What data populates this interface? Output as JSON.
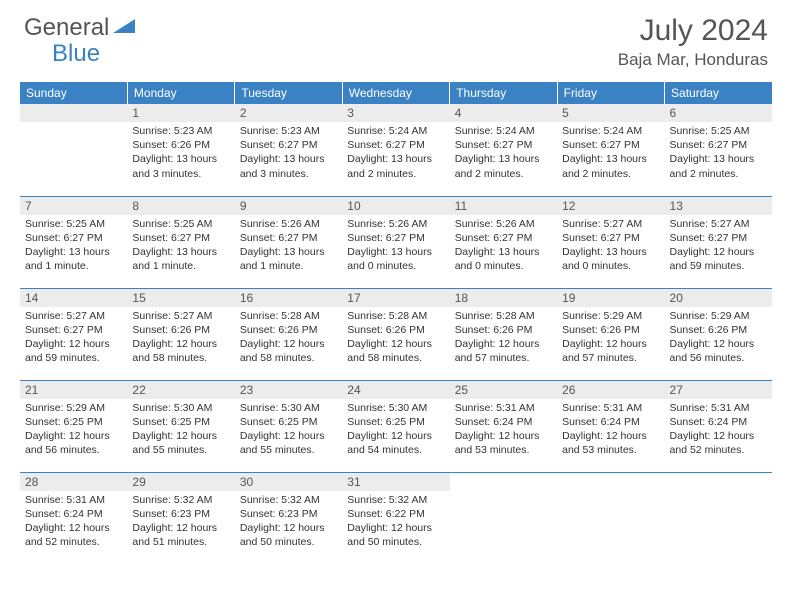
{
  "brand": {
    "part1": "General",
    "part2": "Blue",
    "accent": "#3b82c4",
    "text_color": "#555"
  },
  "title": "July 2024",
  "location": "Baja Mar, Honduras",
  "header_bg": "#3b82c4",
  "header_fg": "#ffffff",
  "daynum_bg": "#ececec",
  "border_color": "#3b82c4",
  "weekdays": [
    "Sunday",
    "Monday",
    "Tuesday",
    "Wednesday",
    "Thursday",
    "Friday",
    "Saturday"
  ],
  "weeks": [
    [
      null,
      {
        "n": "1",
        "sunrise": "5:23 AM",
        "sunset": "6:26 PM",
        "daylight": "13 hours and 3 minutes."
      },
      {
        "n": "2",
        "sunrise": "5:23 AM",
        "sunset": "6:27 PM",
        "daylight": "13 hours and 3 minutes."
      },
      {
        "n": "3",
        "sunrise": "5:24 AM",
        "sunset": "6:27 PM",
        "daylight": "13 hours and 2 minutes."
      },
      {
        "n": "4",
        "sunrise": "5:24 AM",
        "sunset": "6:27 PM",
        "daylight": "13 hours and 2 minutes."
      },
      {
        "n": "5",
        "sunrise": "5:24 AM",
        "sunset": "6:27 PM",
        "daylight": "13 hours and 2 minutes."
      },
      {
        "n": "6",
        "sunrise": "5:25 AM",
        "sunset": "6:27 PM",
        "daylight": "13 hours and 2 minutes."
      }
    ],
    [
      {
        "n": "7",
        "sunrise": "5:25 AM",
        "sunset": "6:27 PM",
        "daylight": "13 hours and 1 minute."
      },
      {
        "n": "8",
        "sunrise": "5:25 AM",
        "sunset": "6:27 PM",
        "daylight": "13 hours and 1 minute."
      },
      {
        "n": "9",
        "sunrise": "5:26 AM",
        "sunset": "6:27 PM",
        "daylight": "13 hours and 1 minute."
      },
      {
        "n": "10",
        "sunrise": "5:26 AM",
        "sunset": "6:27 PM",
        "daylight": "13 hours and 0 minutes."
      },
      {
        "n": "11",
        "sunrise": "5:26 AM",
        "sunset": "6:27 PM",
        "daylight": "13 hours and 0 minutes."
      },
      {
        "n": "12",
        "sunrise": "5:27 AM",
        "sunset": "6:27 PM",
        "daylight": "13 hours and 0 minutes."
      },
      {
        "n": "13",
        "sunrise": "5:27 AM",
        "sunset": "6:27 PM",
        "daylight": "12 hours and 59 minutes."
      }
    ],
    [
      {
        "n": "14",
        "sunrise": "5:27 AM",
        "sunset": "6:27 PM",
        "daylight": "12 hours and 59 minutes."
      },
      {
        "n": "15",
        "sunrise": "5:27 AM",
        "sunset": "6:26 PM",
        "daylight": "12 hours and 58 minutes."
      },
      {
        "n": "16",
        "sunrise": "5:28 AM",
        "sunset": "6:26 PM",
        "daylight": "12 hours and 58 minutes."
      },
      {
        "n": "17",
        "sunrise": "5:28 AM",
        "sunset": "6:26 PM",
        "daylight": "12 hours and 58 minutes."
      },
      {
        "n": "18",
        "sunrise": "5:28 AM",
        "sunset": "6:26 PM",
        "daylight": "12 hours and 57 minutes."
      },
      {
        "n": "19",
        "sunrise": "5:29 AM",
        "sunset": "6:26 PM",
        "daylight": "12 hours and 57 minutes."
      },
      {
        "n": "20",
        "sunrise": "5:29 AM",
        "sunset": "6:26 PM",
        "daylight": "12 hours and 56 minutes."
      }
    ],
    [
      {
        "n": "21",
        "sunrise": "5:29 AM",
        "sunset": "6:25 PM",
        "daylight": "12 hours and 56 minutes."
      },
      {
        "n": "22",
        "sunrise": "5:30 AM",
        "sunset": "6:25 PM",
        "daylight": "12 hours and 55 minutes."
      },
      {
        "n": "23",
        "sunrise": "5:30 AM",
        "sunset": "6:25 PM",
        "daylight": "12 hours and 55 minutes."
      },
      {
        "n": "24",
        "sunrise": "5:30 AM",
        "sunset": "6:25 PM",
        "daylight": "12 hours and 54 minutes."
      },
      {
        "n": "25",
        "sunrise": "5:31 AM",
        "sunset": "6:24 PM",
        "daylight": "12 hours and 53 minutes."
      },
      {
        "n": "26",
        "sunrise": "5:31 AM",
        "sunset": "6:24 PM",
        "daylight": "12 hours and 53 minutes."
      },
      {
        "n": "27",
        "sunrise": "5:31 AM",
        "sunset": "6:24 PM",
        "daylight": "12 hours and 52 minutes."
      }
    ],
    [
      {
        "n": "28",
        "sunrise": "5:31 AM",
        "sunset": "6:24 PM",
        "daylight": "12 hours and 52 minutes."
      },
      {
        "n": "29",
        "sunrise": "5:32 AM",
        "sunset": "6:23 PM",
        "daylight": "12 hours and 51 minutes."
      },
      {
        "n": "30",
        "sunrise": "5:32 AM",
        "sunset": "6:23 PM",
        "daylight": "12 hours and 50 minutes."
      },
      {
        "n": "31",
        "sunrise": "5:32 AM",
        "sunset": "6:22 PM",
        "daylight": "12 hours and 50 minutes."
      },
      null,
      null,
      null
    ]
  ],
  "labels": {
    "sunrise": "Sunrise:",
    "sunset": "Sunset:",
    "daylight": "Daylight:"
  }
}
